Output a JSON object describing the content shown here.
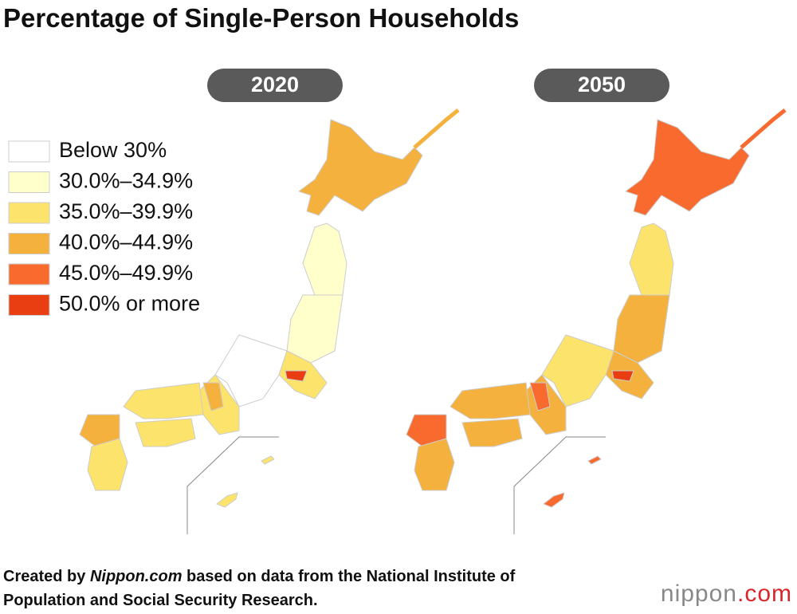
{
  "header": {
    "title": "Percentage of Single-Person Households"
  },
  "maps": [
    {
      "year": "2020"
    },
    {
      "year": "2050"
    }
  ],
  "legend": [
    {
      "label": "Below 30%",
      "color": "#ffffff"
    },
    {
      "label": "30.0%–34.9%",
      "color": "#ffffcc"
    },
    {
      "label": "35.0%–39.9%",
      "color": "#fce36b"
    },
    {
      "label": "40.0%–44.9%",
      "color": "#f5b13d"
    },
    {
      "label": "45.0%–49.9%",
      "color": "#f96a2f"
    },
    {
      "label": "50.0% or more",
      "color": "#e83e11"
    }
  ],
  "footer": {
    "parts": [
      "Created by ",
      "Nippon.com",
      " based on data from the National Institute of",
      "Population and Social Security Research."
    ]
  },
  "logo": {
    "name": "nippon",
    "suffix": ".com"
  }
}
